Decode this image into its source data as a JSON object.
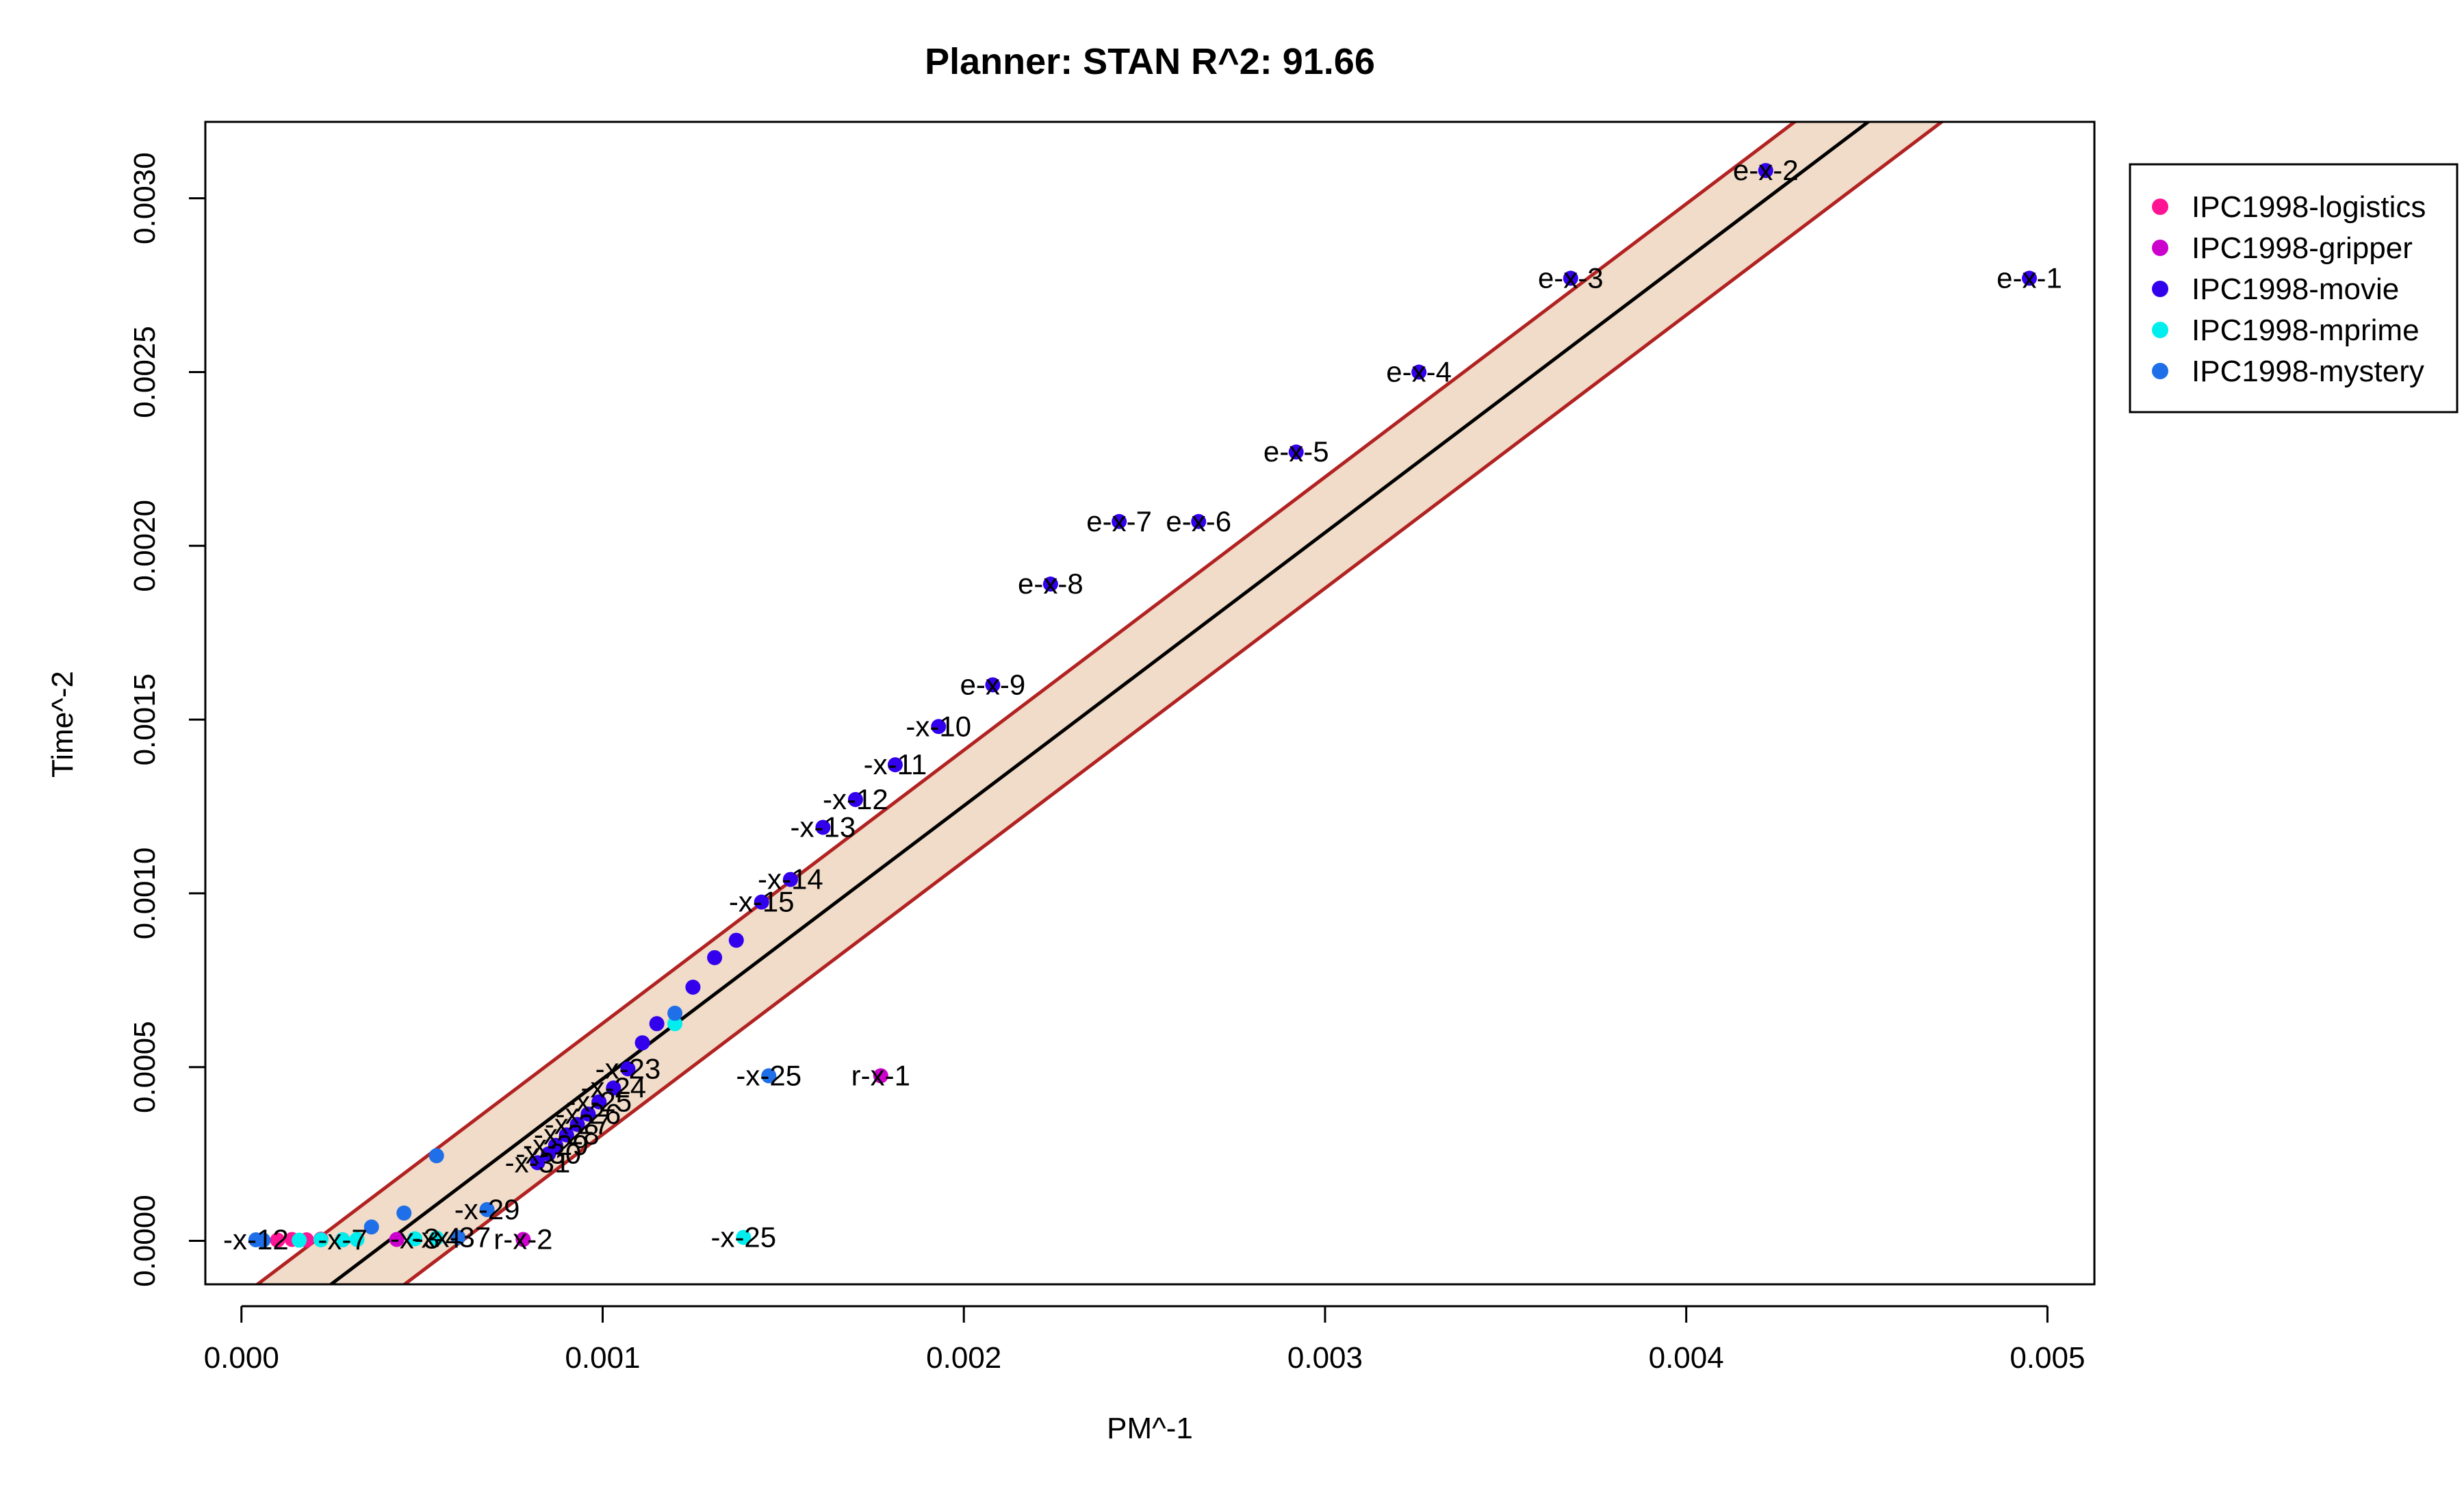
{
  "chart_data": {
    "type": "scatter",
    "title": "Planner: STAN R^2: 91.66",
    "xlabel": "PM^-1",
    "ylabel": "Time^-2",
    "xlim": [
      -0.0001,
      0.00513
    ],
    "ylim": [
      -0.000125,
      0.00322
    ],
    "x_ticks": [
      0.0,
      0.001,
      0.002,
      0.003,
      0.004,
      0.005
    ],
    "x_tick_labels": [
      "0.000",
      "0.001",
      "0.002",
      "0.003",
      "0.004",
      "0.005"
    ],
    "y_ticks": [
      0.0,
      0.0005,
      0.001,
      0.0015,
      0.002,
      0.0025,
      0.003
    ],
    "y_tick_labels": [
      "0.0000",
      "0.0005",
      "0.0010",
      "0.0015",
      "0.0020",
      "0.0025",
      "0.0030"
    ],
    "grid": false,
    "legend_position": "top-right-outside",
    "band_color": "#F0DCC8",
    "band_edge_color": "#B22222",
    "fit_line_color": "#000000",
    "fit_line": {
      "x0": 0.0,
      "y0": -0.00032,
      "slope": 0.786
    },
    "band_halfwidth": 0.00016,
    "series": [
      {
        "name": "IPC1998-logistics",
        "color": "#FF1493",
        "points": [
          {
            "x": 0.0001,
            "y": 2e-06,
            "label": ""
          },
          {
            "x": 0.00014,
            "y": 4e-06,
            "label": ""
          },
          {
            "x": 0.00018,
            "y": 3e-06,
            "label": ""
          },
          {
            "x": 0.00022,
            "y": 5e-06,
            "label": ""
          }
        ]
      },
      {
        "name": "IPC1998-gripper",
        "color": "#CC00CC",
        "points": [
          {
            "x": 0.00177,
            "y": 0.000475,
            "label": "r-x-1"
          },
          {
            "x": 0.00078,
            "y": 4e-06,
            "label": "r-x-2"
          },
          {
            "x": 0.00043,
            "y": 4e-06,
            "label": ""
          },
          {
            "x": 0.00028,
            "y": 3e-06,
            "label": ""
          }
        ]
      },
      {
        "name": "IPC1998-movie",
        "color": "#3300EE",
        "points": [
          {
            "x": 0.00495,
            "y": 0.00277,
            "label": "e-x-1"
          },
          {
            "x": 0.00422,
            "y": 0.00308,
            "label": "e-x-2"
          },
          {
            "x": 0.00368,
            "y": 0.00277,
            "label": "e-x-3"
          },
          {
            "x": 0.00326,
            "y": 0.0025,
            "label": "e-x-4"
          },
          {
            "x": 0.00292,
            "y": 0.00227,
            "label": "e-x-5"
          },
          {
            "x": 0.00265,
            "y": 0.00207,
            "label": "e-x-6"
          },
          {
            "x": 0.00243,
            "y": 0.00207,
            "label": "e-x-7"
          },
          {
            "x": 0.00224,
            "y": 0.00189,
            "label": "e-x-8"
          },
          {
            "x": 0.00208,
            "y": 0.0016,
            "label": "e-x-9"
          },
          {
            "x": 0.00193,
            "y": 0.00148,
            "label": "-x-10"
          },
          {
            "x": 0.00181,
            "y": 0.00137,
            "label": "-x-11"
          },
          {
            "x": 0.0017,
            "y": 0.00127,
            "label": "-x-12"
          },
          {
            "x": 0.00161,
            "y": 0.00119,
            "label": "-x-13"
          },
          {
            "x": 0.00152,
            "y": 0.00104,
            "label": "-x-14"
          },
          {
            "x": 0.00144,
            "y": 0.000975,
            "label": "-x-15"
          },
          {
            "x": 0.00137,
            "y": 0.000865,
            "label": ""
          },
          {
            "x": 0.00131,
            "y": 0.000815,
            "label": ""
          },
          {
            "x": 0.00125,
            "y": 0.00073,
            "label": ""
          },
          {
            "x": 0.00115,
            "y": 0.000625,
            "label": ""
          },
          {
            "x": 0.00111,
            "y": 0.00057,
            "label": ""
          },
          {
            "x": 0.00107,
            "y": 0.000495,
            "label": "-x-23"
          },
          {
            "x": 0.00103,
            "y": 0.00044,
            "label": "-x-24"
          },
          {
            "x": 0.00099,
            "y": 0.0004,
            "label": "-x-25"
          },
          {
            "x": 0.00096,
            "y": 0.000365,
            "label": "-x-26"
          },
          {
            "x": 0.00093,
            "y": 0.000335,
            "label": "-x-27"
          },
          {
            "x": 0.0009,
            "y": 0.000305,
            "label": "-x-28"
          },
          {
            "x": 0.00087,
            "y": 0.000275,
            "label": "-x-29"
          },
          {
            "x": 0.00085,
            "y": 0.00025,
            "label": "-x-30"
          },
          {
            "x": 0.00082,
            "y": 0.000225,
            "label": "-x-31"
          }
        ]
      },
      {
        "name": "IPC1998-mprime",
        "color": "#00EEEE",
        "points": [
          {
            "x": 0.00139,
            "y": 1e-05,
            "label": "-x-25"
          },
          {
            "x": 0.0012,
            "y": 0.000625,
            "label": ""
          },
          {
            "x": 0.00054,
            "y": 8e-06,
            "label": "-x-4"
          },
          {
            "x": 0.00048,
            "y": 6e-06,
            "label": "-x-3"
          },
          {
            "x": 0.00032,
            "y": 4e-06,
            "label": ""
          },
          {
            "x": 0.00028,
            "y": 3e-06,
            "label": "-x-7"
          },
          {
            "x": 0.00022,
            "y": 3e-06,
            "label": ""
          },
          {
            "x": 0.00016,
            "y": 2e-06,
            "label": ""
          }
        ]
      },
      {
        "name": "IPC1998-mystery",
        "color": "#1F6FE8",
        "points": [
          {
            "x": 0.00146,
            "y": 0.000475,
            "label": "-x-25"
          },
          {
            "x": 0.0012,
            "y": 0.000655,
            "label": ""
          },
          {
            "x": 0.00054,
            "y": 0.000245,
            "label": ""
          },
          {
            "x": 0.00068,
            "y": 9e-05,
            "label": "-x-29"
          },
          {
            "x": 0.00045,
            "y": 8e-05,
            "label": ""
          },
          {
            "x": 0.00036,
            "y": 4e-05,
            "label": ""
          },
          {
            "x": 0.0006,
            "y": 1e-05,
            "label": "-x-37"
          },
          {
            "x": 4e-05,
            "y": 3e-06,
            "label": "-x-12"
          },
          {
            "x": 6e-05,
            "y": 2e-06,
            "label": ""
          }
        ]
      }
    ]
  }
}
